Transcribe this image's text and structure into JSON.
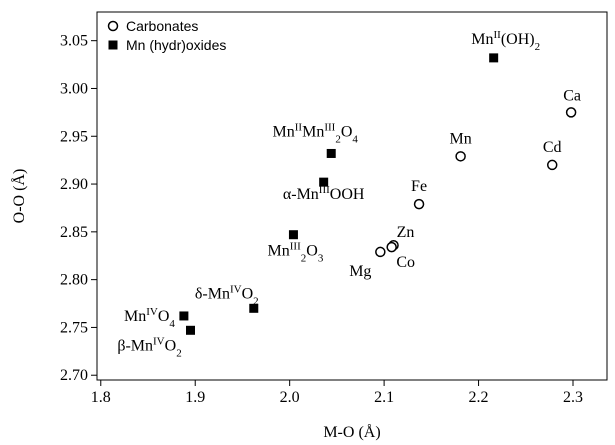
{
  "chart_data": {
    "type": "scatter",
    "x_label": "M-O (Å)",
    "y_label": "O-O (Å)",
    "xlim": [
      1.796,
      2.336
    ],
    "ylim": [
      2.695,
      3.08
    ],
    "xticks": [
      {
        "value": 1.8,
        "label": "1.8"
      },
      1.9,
      {
        "value": 2.0,
        "label": "2.0"
      },
      2.1,
      2.2,
      2.3
    ],
    "yticks": [
      {
        "value": 2.7,
        "label": "2.70"
      },
      2.75,
      {
        "value": 2.8,
        "label": "2.80"
      },
      2.85,
      {
        "value": 2.9,
        "label": "2.90"
      },
      2.95,
      {
        "value": 3.0,
        "label": "3.00"
      },
      3.05
    ],
    "legend": "top-left",
    "series": [
      {
        "name": "Carbonates",
        "color": "#000000",
        "marker": "open-circle",
        "x": [
          2.298,
          2.278,
          2.181,
          2.137,
          2.11,
          2.096,
          2.108
        ],
        "values": [
          2.975,
          2.92,
          2.929,
          2.879,
          2.836,
          2.829,
          2.834
        ],
        "labels": [
          [
            {
              "text": "Ca"
            }
          ],
          [
            {
              "text": "Cd"
            }
          ],
          [
            {
              "text": "Mn"
            }
          ],
          [
            {
              "text": "Fe"
            }
          ],
          [
            {
              "text": "Zn"
            }
          ],
          [
            {
              "text": "Mg"
            }
          ],
          [
            {
              "text": "Co"
            }
          ]
        ]
      },
      {
        "name": "Mn (hydr)oxides",
        "color": "#000000",
        "marker": "filled-square",
        "x": [
          2.216,
          2.044,
          2.036,
          2.004,
          1.962,
          1.888,
          1.895
        ],
        "values": [
          3.032,
          2.932,
          2.902,
          2.847,
          2.77,
          2.762,
          2.747
        ],
        "labels": [
          [
            {
              "text": "Mn"
            },
            {
              "text": "II",
              "shift": "super"
            },
            {
              "text": "(OH)"
            },
            {
              "text": "2",
              "shift": "sub"
            }
          ],
          [
            {
              "text": "Mn"
            },
            {
              "text": "II",
              "shift": "super"
            },
            {
              "text": "Mn"
            },
            {
              "text": "III",
              "shift": "super"
            },
            {
              "text": "2",
              "shift": "sub"
            },
            {
              "text": "O"
            },
            {
              "text": "4",
              "shift": "sub"
            }
          ],
          [
            {
              "text": "α-Mn"
            },
            {
              "text": "III",
              "shift": "super"
            },
            {
              "text": "OOH"
            }
          ],
          [
            {
              "text": "Mn"
            },
            {
              "text": "III",
              "shift": "super"
            },
            {
              "text": "2",
              "shift": "sub"
            },
            {
              "text": "O"
            },
            {
              "text": "3",
              "shift": "sub"
            }
          ],
          [
            {
              "text": "δ-Mn"
            },
            {
              "text": "IV",
              "shift": "super"
            },
            {
              "text": "O"
            },
            {
              "text": "2",
              "shift": "sub"
            }
          ],
          [
            {
              "text": "Mn"
            },
            {
              "text": "IV",
              "shift": "super"
            },
            {
              "text": "O"
            },
            {
              "text": "4",
              "shift": "sub"
            }
          ],
          [
            {
              "text": "β-Mn"
            },
            {
              "text": "IV",
              "shift": "super"
            },
            {
              "text": "O"
            },
            {
              "text": "2",
              "shift": "sub"
            }
          ]
        ]
      }
    ]
  }
}
